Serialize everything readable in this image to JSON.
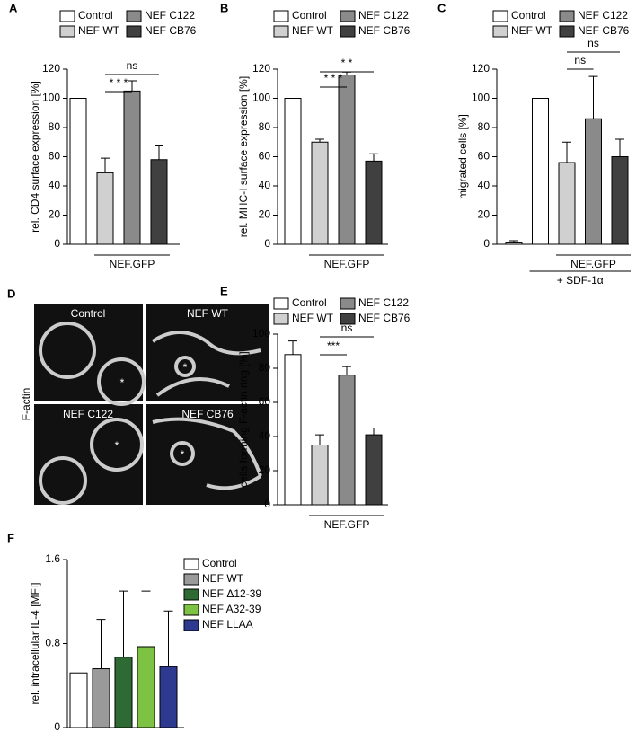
{
  "chart_data": [
    {
      "type": "bar",
      "panel": "A",
      "y_label": "rel. CD4 surface expression [%]",
      "categories": [
        "Control",
        "NEF WT",
        "NEF C122",
        "NEF CB76"
      ],
      "colors": [
        "#ffffff",
        "#d0d0d0",
        "#8a8a8a",
        "#404040"
      ],
      "values": [
        100,
        49,
        105,
        58
      ],
      "errors": [
        0,
        10,
        7,
        10
      ],
      "ylim": [
        0,
        120
      ],
      "yticks": [
        0,
        20,
        40,
        60,
        80,
        100,
        120
      ],
      "significance": [
        {
          "label": "* * *",
          "from": 1,
          "to": 2
        },
        {
          "label": "ns",
          "from": 1,
          "to": 3
        }
      ],
      "groups": [
        {
          "label": "NEF.GFP",
          "from": 1,
          "to": 3
        }
      ]
    },
    {
      "type": "bar",
      "panel": "B",
      "y_label": "rel. MHC-I surface expression [%]",
      "categories": [
        "Control",
        "NEF WT",
        "NEF C122",
        "NEF CB76"
      ],
      "colors": [
        "#ffffff",
        "#d0d0d0",
        "#8a8a8a",
        "#404040"
      ],
      "values": [
        100,
        70,
        116,
        57
      ],
      "errors": [
        0,
        2,
        2,
        5
      ],
      "ylim": [
        0,
        120
      ],
      "yticks": [
        0,
        20,
        40,
        60,
        80,
        100,
        120
      ],
      "significance": [
        {
          "label": "* * *",
          "from": 1,
          "to": 2
        },
        {
          "label": "* *",
          "from": 1,
          "to": 3
        }
      ],
      "groups": [
        {
          "label": "NEF.GFP",
          "from": 1,
          "to": 3
        }
      ]
    },
    {
      "type": "bar",
      "panel": "C",
      "y_label": "migrated cells [%]",
      "categories": [
        null,
        "Control",
        "NEF WT",
        "NEF C122",
        "NEF CB76"
      ],
      "colors": [
        "#ffffff",
        "#ffffff",
        "#d0d0d0",
        "#8a8a8a",
        "#404040"
      ],
      "values": [
        1.5,
        100,
        56,
        86,
        60
      ],
      "errors": [
        1,
        0,
        14,
        29,
        12
      ],
      "ylim": [
        0,
        120
      ],
      "yticks": [
        0,
        20,
        40,
        60,
        80,
        100,
        120
      ],
      "significance": [
        {
          "label": "ns",
          "from": 2,
          "to": 3
        },
        {
          "label": "ns",
          "from": 2,
          "to": 4
        }
      ],
      "groups": [
        {
          "label": "NEF.GFP",
          "from": 2,
          "to": 4
        },
        {
          "label": "+ SDF-1α",
          "from": 1,
          "to": 4
        }
      ]
    },
    {
      "type": "bar",
      "panel": "E",
      "y_label": "cells forming F-actin ring [%]",
      "categories": [
        "Control",
        "NEF WT",
        "NEF C122",
        "NEF CB76"
      ],
      "colors": [
        "#ffffff",
        "#d0d0d0",
        "#8a8a8a",
        "#404040"
      ],
      "values": [
        88,
        35,
        76,
        41
      ],
      "errors": [
        8,
        6,
        5,
        4
      ],
      "ylim": [
        0,
        100
      ],
      "yticks": [
        0,
        20,
        40,
        60,
        80,
        100
      ],
      "significance": [
        {
          "label": "***",
          "from": 1,
          "to": 2
        },
        {
          "label": "ns",
          "from": 1,
          "to": 3
        }
      ],
      "groups": [
        {
          "label": "NEF.GFP",
          "from": 1,
          "to": 3
        }
      ]
    },
    {
      "type": "bar",
      "panel": "F",
      "y_label": "rel. intracellular IL-4 [MFI]",
      "categories": [
        "Control",
        "NEF WT",
        "NEF Δ12-39",
        "NEF A32-39",
        "NEF LLAA"
      ],
      "colors": [
        "#ffffff",
        "#9a9a9a",
        "#2e6b34",
        "#7dc242",
        "#2e3a8f"
      ],
      "values": [
        0.52,
        0.56,
        0.67,
        0.77,
        0.58
      ],
      "errors": [
        0,
        0.47,
        0.63,
        0.53,
        0.53
      ],
      "ylim": [
        0,
        1.6
      ],
      "yticks": [
        0,
        0.8,
        1.6
      ],
      "significance": [],
      "groups": []
    }
  ],
  "image_panel": {
    "panel": "D",
    "row_label": "F-actin",
    "marker": "*",
    "titles": [
      "Control",
      "NEF WT",
      "NEF C122",
      "NEF CB76"
    ]
  }
}
